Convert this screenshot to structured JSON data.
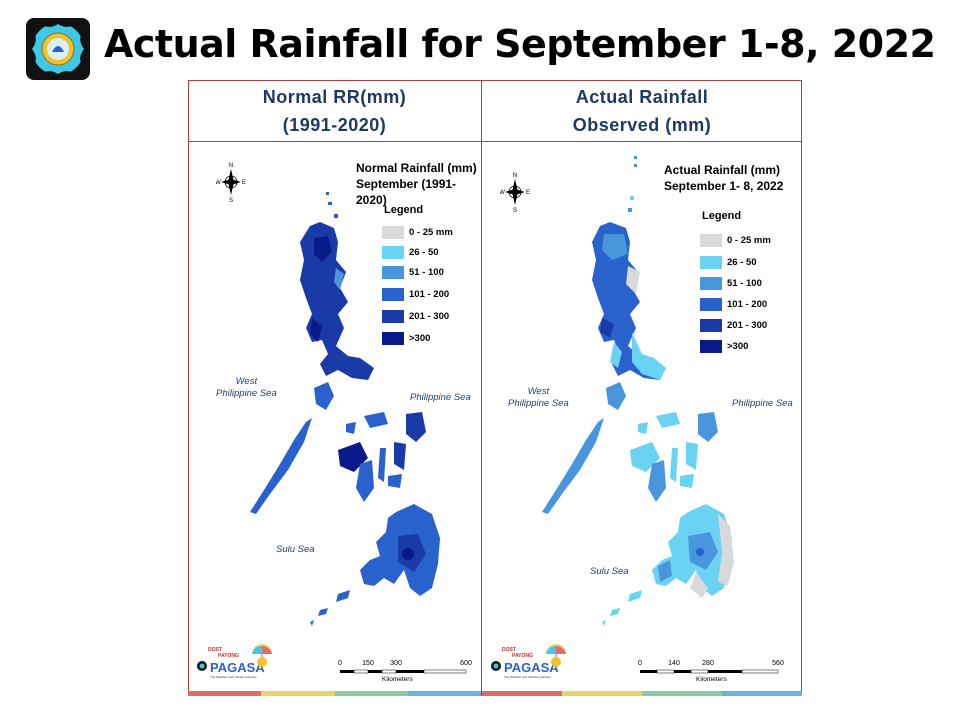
{
  "slide": {
    "title": "Actual Rainfall for September 1-8, 2022"
  },
  "colors": {
    "frame": "#b33b3b",
    "header_text": "#1f3864",
    "legend_0_25": "#d9d9d9",
    "legend_26_50": "#6ad2f2",
    "legend_51_100": "#4a96dd",
    "legend_101_200": "#2a62cd",
    "legend_201_300": "#1a3aa8",
    "legend_gt300": "#0a1a8a"
  },
  "panels": {
    "left": {
      "header_line1": "Normal RR(mm)",
      "header_line2": "(1991-2020)",
      "map_title_line1": "Normal Rainfall (mm)",
      "map_title_line2": "September (1991-2020)",
      "legend_title": "Legend",
      "legend": [
        "0 - 25 mm",
        "26 - 50",
        "51 - 100",
        "101 - 200",
        "201 - 300",
        ">300"
      ],
      "sea_west_line1": "West",
      "sea_west_line2": "Philippine Sea",
      "sea_east": "Philippine Sea",
      "sea_sulu": "Sulu Sea",
      "scale": [
        "0",
        "150",
        "300",
        "600"
      ],
      "scale_unit": "Kilometers",
      "compass": {
        "n": "N",
        "s": "S",
        "e": "E",
        "w": "W"
      },
      "logo_text": "PAGASA",
      "logo_top": "DOST",
      "logo_mid": "PAYONG",
      "logo_sub": "The Weather and Climate Authority"
    },
    "right": {
      "header_line1": "Actual Rainfall",
      "header_line2": "Observed (mm)",
      "map_title_line1": "Actual Rainfall (mm)",
      "map_title_line2": "September 1- 8, 2022",
      "legend_title": "Legend",
      "legend": [
        "0 - 25 mm",
        "26 - 50",
        "51 - 100",
        "101 - 200",
        "201 - 300",
        ">300"
      ],
      "sea_west_line1": "West",
      "sea_west_line2": "Philippine Sea",
      "sea_east": "Philippine Sea",
      "sea_sulu": "Sulu Sea",
      "scale": [
        "0",
        "140",
        "280",
        "560"
      ],
      "scale_unit": "Kilometers",
      "compass": {
        "n": "N",
        "s": "S",
        "e": "E",
        "w": "W"
      },
      "logo_text": "PAGASA",
      "logo_top": "DOST",
      "logo_mid": "PAYONG",
      "logo_sub": "The Weather and Climate Authority"
    }
  },
  "footer_colors": [
    "#e06b6b",
    "#e8d46a",
    "#8dc7a4",
    "#6ab2df"
  ]
}
